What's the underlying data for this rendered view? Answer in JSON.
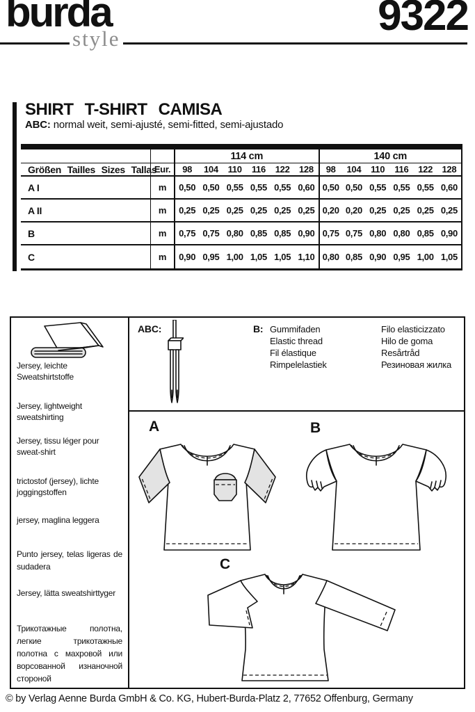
{
  "header": {
    "brand": "burda",
    "brand_sub": "style",
    "pattern_number": "9322"
  },
  "title": {
    "main": "SHIRT T-SHIRT CAMISA",
    "fit_label": "ABC:",
    "fit_text": "normal weit, semi-ajusté, semi-fitted, semi-ajustado"
  },
  "size_table": {
    "width_groups": [
      "114 cm",
      "140 cm"
    ],
    "row_header": "Größen Tailles Sizes Tallas",
    "unit_header": "Eur.",
    "sizes": [
      "98",
      "104",
      "110",
      "116",
      "122",
      "128"
    ],
    "rows": [
      {
        "label": "A I",
        "unit": "m",
        "values_114": [
          "0,50",
          "0,50",
          "0,55",
          "0,55",
          "0,55",
          "0,60"
        ],
        "values_140": [
          "0,50",
          "0,50",
          "0,55",
          "0,55",
          "0,55",
          "0,60"
        ]
      },
      {
        "label": "A II",
        "unit": "m",
        "values_114": [
          "0,25",
          "0,25",
          "0,25",
          "0,25",
          "0,25",
          "0,25"
        ],
        "values_140": [
          "0,20",
          "0,20",
          "0,25",
          "0,25",
          "0,25",
          "0,25"
        ]
      },
      {
        "label": "B",
        "unit": "m",
        "values_114": [
          "0,75",
          "0,75",
          "0,80",
          "0,85",
          "0,85",
          "0,90"
        ],
        "values_140": [
          "0,75",
          "0,75",
          "0,80",
          "0,80",
          "0,85",
          "0,90"
        ]
      },
      {
        "label": "C",
        "unit": "m",
        "values_114": [
          "0,90",
          "0,95",
          "1,00",
          "1,05",
          "1,05",
          "1,10"
        ],
        "values_140": [
          "0,80",
          "0,85",
          "0,90",
          "0,95",
          "1,00",
          "1,05"
        ]
      }
    ]
  },
  "fabrics": {
    "icon": "fabric-bolt-icon",
    "items": [
      "Jersey, leichte Sweatshirtstoffe",
      "Jersey, lightweight sweatshirting",
      "Jersey, tissu léger pour\nsweat-shirt",
      "trictostof (jersey), lichte\njoggingstoffen",
      "jersey, maglina leggera",
      "Punto jersey, telas ligeras de sudadera",
      "Jersey, lätta sweatshirttyger",
      "Трикотажные полотна, легкие трикотажные полотна с махровой или ворсованной изнаночной стороной"
    ]
  },
  "notions": {
    "abc_label": "ABC:",
    "needle_icon": "twin-needle-icon",
    "b_label": "B:",
    "b_col1": "Gummifaden\nElastic thread\nFil élastique\nRimpelelastiek",
    "b_col2": "Filo elasticizzato\nHilo de goma\nResårtråd\nРезиновая жилка"
  },
  "views": {
    "a": "A",
    "b": "B",
    "c": "C",
    "variant_1": "I",
    "variant_2": "II"
  },
  "footer": {
    "copyright": "© by Verlag Aenne Burda GmbH & Co. KG, Hubert-Burda-Platz 2, 77652 Offenburg, Germany"
  },
  "colors": {
    "line": "#111111",
    "shade": "#e3e3e3",
    "brand_sub_gray": "#8d8d8d"
  }
}
